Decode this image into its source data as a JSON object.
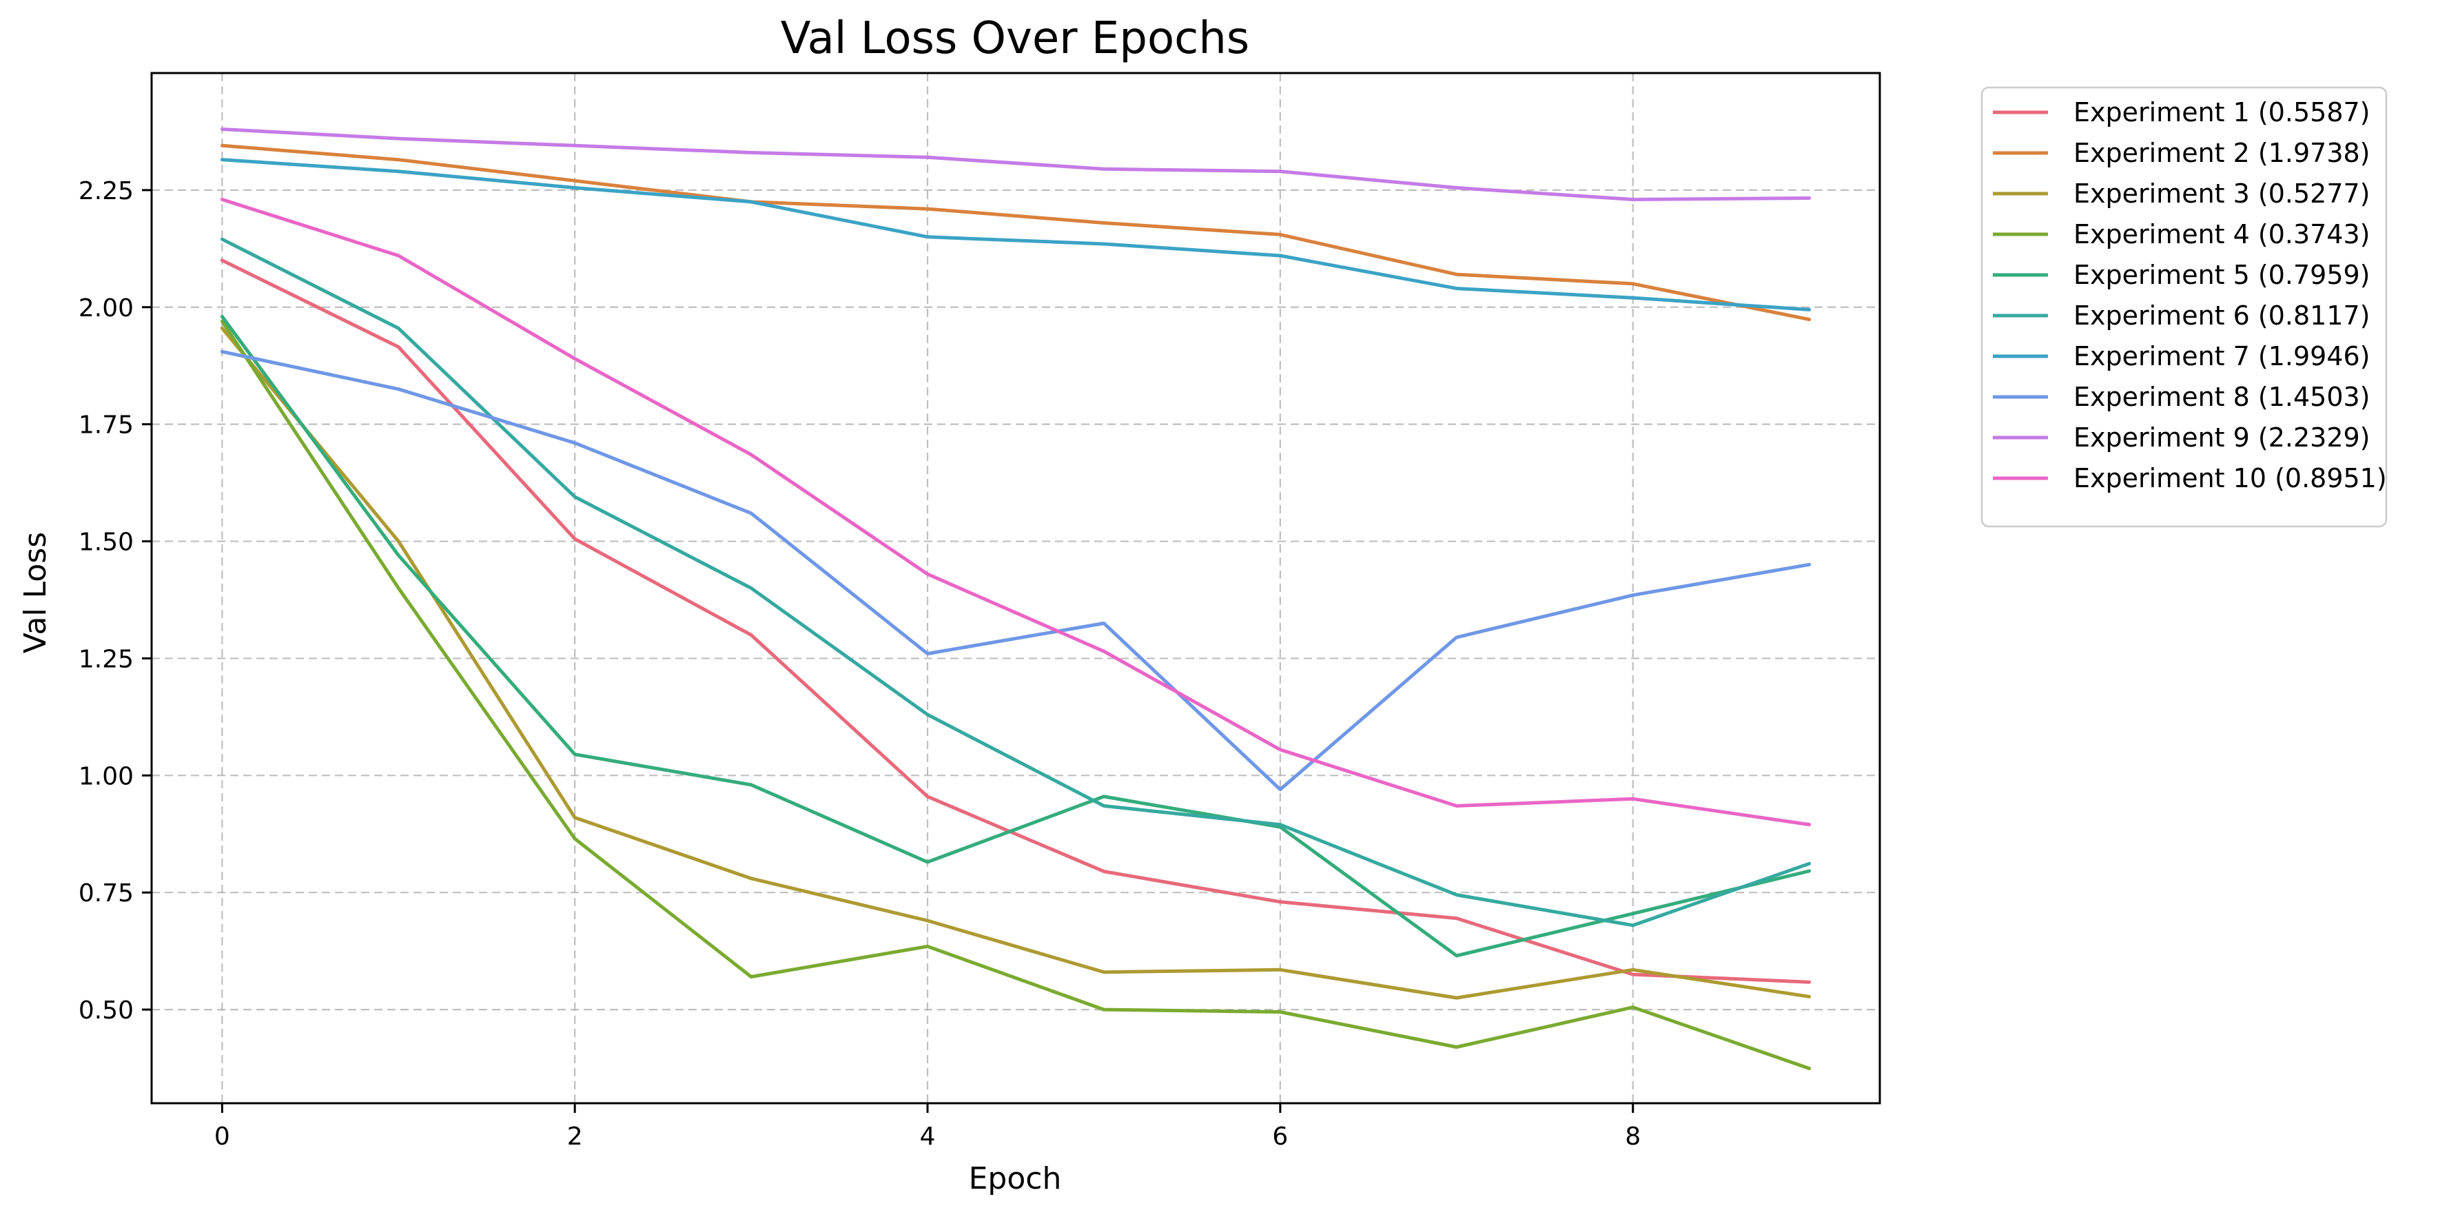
{
  "chart_data": {
    "type": "line",
    "title": "Val Loss Over Epochs",
    "xlabel": "Epoch",
    "ylabel": "Val Loss",
    "xlim": [
      -0.4,
      9.4
    ],
    "ylim": [
      0.3,
      2.5
    ],
    "xticks": [
      0,
      2,
      4,
      6,
      8
    ],
    "yticks": [
      0.5,
      0.75,
      1.0,
      1.25,
      1.5,
      1.75,
      2.0,
      2.25
    ],
    "ytick_labels": [
      "0.50",
      "0.75",
      "1.00",
      "1.25",
      "1.50",
      "1.75",
      "2.00",
      "2.25"
    ],
    "grid": true,
    "legend_position": "outside-top-right",
    "x": [
      0,
      1,
      2,
      3,
      4,
      5,
      6,
      7,
      8,
      9
    ],
    "series": [
      {
        "name": "Experiment 1 (0.5587)",
        "color": "#e8697b",
        "values": [
          2.1,
          1.915,
          1.505,
          1.3,
          0.955,
          0.795,
          0.73,
          0.695,
          0.575,
          0.5587
        ]
      },
      {
        "name": "Experiment 2 (1.9738)",
        "color": "#d9813c",
        "values": [
          2.345,
          2.315,
          2.27,
          2.225,
          2.21,
          2.18,
          2.155,
          2.07,
          2.05,
          1.9738
        ]
      },
      {
        "name": "Experiment 3 (0.5277)",
        "color": "#ad9a32",
        "values": [
          1.955,
          1.5,
          0.91,
          0.78,
          0.69,
          0.58,
          0.585,
          0.525,
          0.585,
          0.5277
        ]
      },
      {
        "name": "Experiment 4 (0.3743)",
        "color": "#7aaa31",
        "values": [
          1.97,
          1.4,
          0.865,
          0.57,
          0.635,
          0.5,
          0.495,
          0.42,
          0.505,
          0.3743
        ]
      },
      {
        "name": "Experiment 5 (0.7959)",
        "color": "#34ac7c",
        "values": [
          1.98,
          1.47,
          1.045,
          0.98,
          0.815,
          0.955,
          0.89,
          0.615,
          0.705,
          0.7959
        ]
      },
      {
        "name": "Experiment 6 (0.8117)",
        "color": "#35a9a0",
        "values": [
          2.145,
          1.955,
          1.595,
          1.4,
          1.13,
          0.935,
          0.895,
          0.745,
          0.68,
          0.8117
        ]
      },
      {
        "name": "Experiment 7 (1.9946)",
        "color": "#3ba3c5",
        "values": [
          2.315,
          2.29,
          2.255,
          2.225,
          2.15,
          2.135,
          2.11,
          2.04,
          2.02,
          1.9946
        ]
      },
      {
        "name": "Experiment 8 (1.4503)",
        "color": "#6f97e6",
        "values": [
          1.905,
          1.825,
          1.71,
          1.56,
          1.26,
          1.325,
          0.97,
          1.295,
          1.385,
          1.4503
        ]
      },
      {
        "name": "Experiment 9 (2.2329)",
        "color": "#c57be6",
        "values": [
          2.38,
          2.36,
          2.345,
          2.33,
          2.32,
          2.295,
          2.29,
          2.255,
          2.23,
          2.2329
        ]
      },
      {
        "name": "Experiment 10 (0.8951)",
        "color": "#ea65c6",
        "values": [
          2.23,
          2.11,
          1.89,
          1.685,
          1.43,
          1.265,
          1.055,
          0.935,
          0.95,
          0.8951
        ]
      }
    ]
  }
}
